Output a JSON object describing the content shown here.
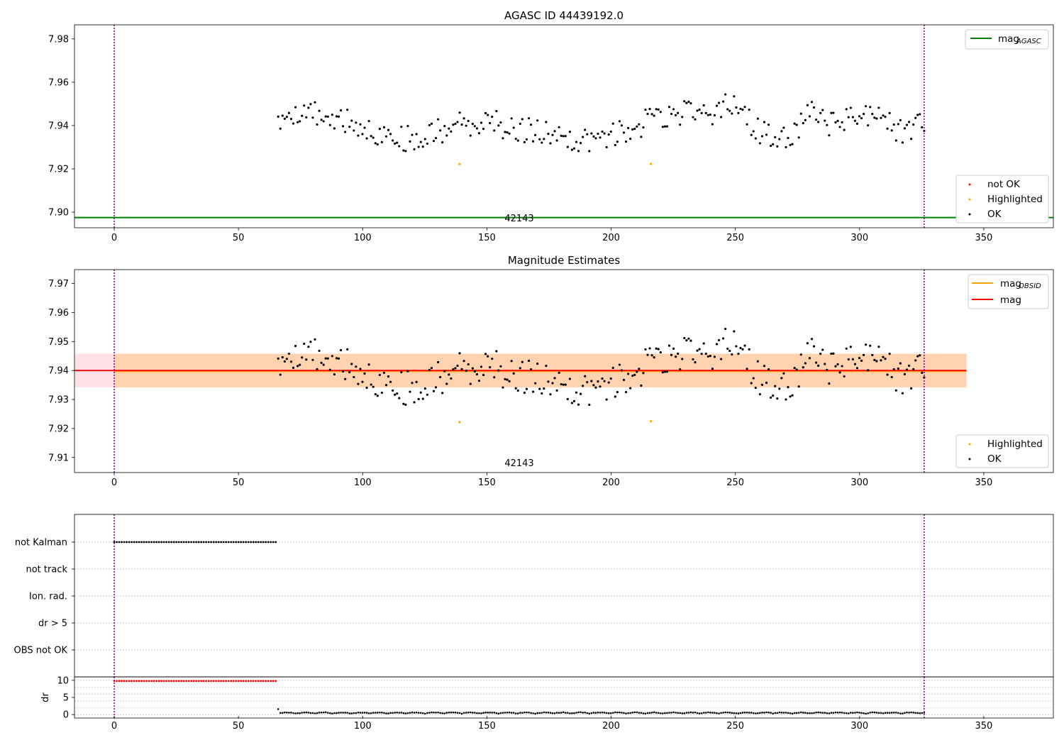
{
  "colors": {
    "ok": "#000000",
    "highlighted": "#ffa500",
    "not_ok": "#ff0000",
    "mag_agasc": "#008000",
    "mag_obsid": "#ffa500",
    "mag": "#ff0000",
    "obs_band": "#ffd2b0",
    "mag_band": "#ffe0e6",
    "vline": "#800080",
    "grid": "#b0b0b0"
  },
  "shared": {
    "x_ticks": [
      0,
      50,
      100,
      150,
      200,
      250,
      300,
      350
    ],
    "x_tick_labels": [
      "0",
      "50",
      "100",
      "150",
      "200",
      "250",
      "300",
      "350"
    ],
    "xlim": [
      -16,
      378
    ],
    "obsid_start": 0,
    "obsid_end": 326,
    "obsid_label": "42143",
    "obsid_label_x": 163,
    "t_start": 66,
    "t_end": 326
  },
  "panel1": {
    "title": "AGASC ID 44439192.0",
    "ylim": [
      7.8928,
      7.9865
    ],
    "y_ticks": [
      7.9,
      7.92,
      7.94,
      7.96,
      7.98
    ],
    "y_tick_labels": [
      "7.90",
      "7.92",
      "7.94",
      "7.96",
      "7.98"
    ],
    "mag_agasc": 7.8975,
    "legend_top": {
      "items": [
        {
          "label": "mag",
          "sub": "AGASC"
        }
      ]
    },
    "legend_bottom": {
      "items": [
        {
          "label": "not OK"
        },
        {
          "label": "Highlighted"
        },
        {
          "label": "OK"
        }
      ]
    }
  },
  "panel2": {
    "title": "Magnitude Estimates",
    "ylim": [
      7.9048,
      7.9748
    ],
    "y_ticks": [
      7.91,
      7.92,
      7.93,
      7.94,
      7.95,
      7.96,
      7.97
    ],
    "y_tick_labels": [
      "7.91",
      "7.92",
      "7.93",
      "7.94",
      "7.95",
      "7.96",
      "7.97"
    ],
    "mag": 7.94,
    "mag_obsid": 7.9397,
    "mag_band": [
      7.9342,
      7.9458
    ],
    "obs_band": [
      7.9342,
      7.9458
    ],
    "band_x_end": 343,
    "legend_top": {
      "items": [
        {
          "label": "mag",
          "sub": "OBSID"
        },
        {
          "label": "mag"
        }
      ]
    },
    "legend_bottom": {
      "items": [
        {
          "label": "Highlighted"
        },
        {
          "label": "OK"
        }
      ]
    }
  },
  "panel3": {
    "categories": [
      "not Kalman",
      "not track",
      "Ion. rad.",
      "dr > 5",
      "OBS not OK"
    ],
    "flag_x_range": [
      0,
      65
    ],
    "flag_category": "not Kalman"
  },
  "panel4": {
    "ylabel": "dr",
    "ylim": [
      -1,
      11
    ],
    "y_ticks": [
      0,
      5,
      10
    ],
    "y_tick_labels": [
      "0",
      "5",
      "10"
    ],
    "high_dr_value": 9.8,
    "high_dr_x_range": [
      0,
      65
    ]
  },
  "chart_data": [
    {
      "type": "scatter",
      "title": "AGASC ID 44439192.0",
      "xlabel": "",
      "ylabel": "",
      "series": [
        {
          "name": "OK",
          "x_range": [
            66,
            326
          ],
          "y_mean": 7.94,
          "y_range": [
            7.925,
            7.955
          ]
        },
        {
          "name": "Highlighted",
          "x": [
            139,
            216
          ],
          "y": [
            7.9222,
            7.9223
          ]
        },
        {
          "name": "mag AGASC",
          "value": 7.8975
        }
      ],
      "ylim": [
        7.8928,
        7.9865
      ],
      "xlim": [
        -16,
        378
      ]
    },
    {
      "type": "scatter",
      "title": "Magnitude Estimates",
      "series": [
        {
          "name": "OK",
          "x_range": [
            66,
            326
          ]
        },
        {
          "name": "Highlighted",
          "x": [
            139,
            216
          ],
          "y": [
            7.9222,
            7.9225
          ]
        },
        {
          "name": "mag OBSID",
          "value": 7.9397
        },
        {
          "name": "mag",
          "value": 7.94
        }
      ],
      "ylim": [
        7.9048,
        7.9748
      ]
    },
    {
      "type": "scatter",
      "title": "",
      "categories": [
        "not Kalman",
        "not track",
        "Ion. rad.",
        "dr > 5",
        "OBS not OK"
      ],
      "series": [
        {
          "name": "not Kalman",
          "x_range": [
            0,
            65
          ]
        }
      ]
    },
    {
      "type": "scatter",
      "title": "",
      "ylabel": "dr",
      "ylim": [
        -1,
        11
      ],
      "series": [
        {
          "name": "dr high",
          "x_range": [
            0,
            65
          ],
          "value": 9.8
        },
        {
          "name": "dr",
          "x_range": [
            66,
            326
          ],
          "value_range": [
            0.1,
            1.6
          ]
        }
      ]
    }
  ]
}
